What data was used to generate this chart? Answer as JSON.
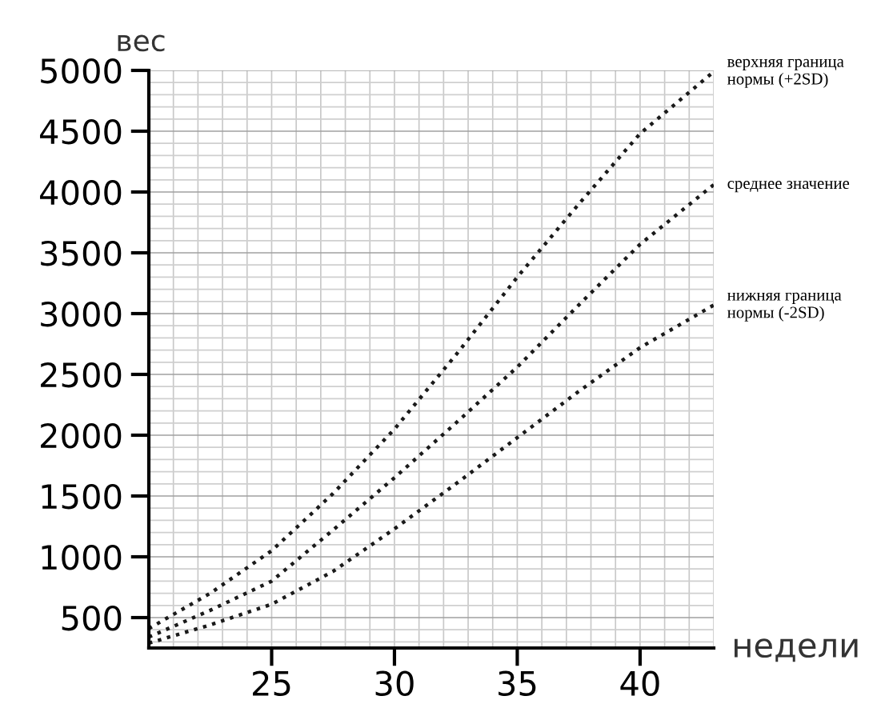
{
  "chart_data": {
    "type": "line",
    "xlabel": "недели",
    "ylabel": "вес",
    "x": [
      20,
      22.5,
      25,
      27.5,
      30,
      32.5,
      35,
      37.5,
      40,
      43
    ],
    "series": [
      {
        "name": "верхняя граница\nнормы (+2SD)",
        "color": "#1a1a1a",
        "values": [
          410,
          700,
          1050,
          1520,
          2050,
          2660,
          3300,
          3900,
          4480,
          4990
        ]
      },
      {
        "name": "среднее значение",
        "color": "#1a1a1a",
        "values": [
          340,
          560,
          800,
          1220,
          1650,
          2100,
          2560,
          3070,
          3570,
          4060
        ]
      },
      {
        "name": "нижняя граница\nнормы (-2SD)",
        "color": "#1a1a1a",
        "values": [
          290,
          440,
          610,
          880,
          1230,
          1600,
          1980,
          2360,
          2720,
          3070
        ]
      }
    ],
    "xlim": [
      20,
      43
    ],
    "ylim": [
      250,
      5000
    ],
    "xticks": [
      25,
      30,
      35,
      40
    ],
    "yticks": [
      500,
      1000,
      1500,
      2000,
      2500,
      3000,
      3500,
      4000,
      4500,
      5000
    ],
    "grid": true,
    "legend": false,
    "line_style": "dotted"
  }
}
